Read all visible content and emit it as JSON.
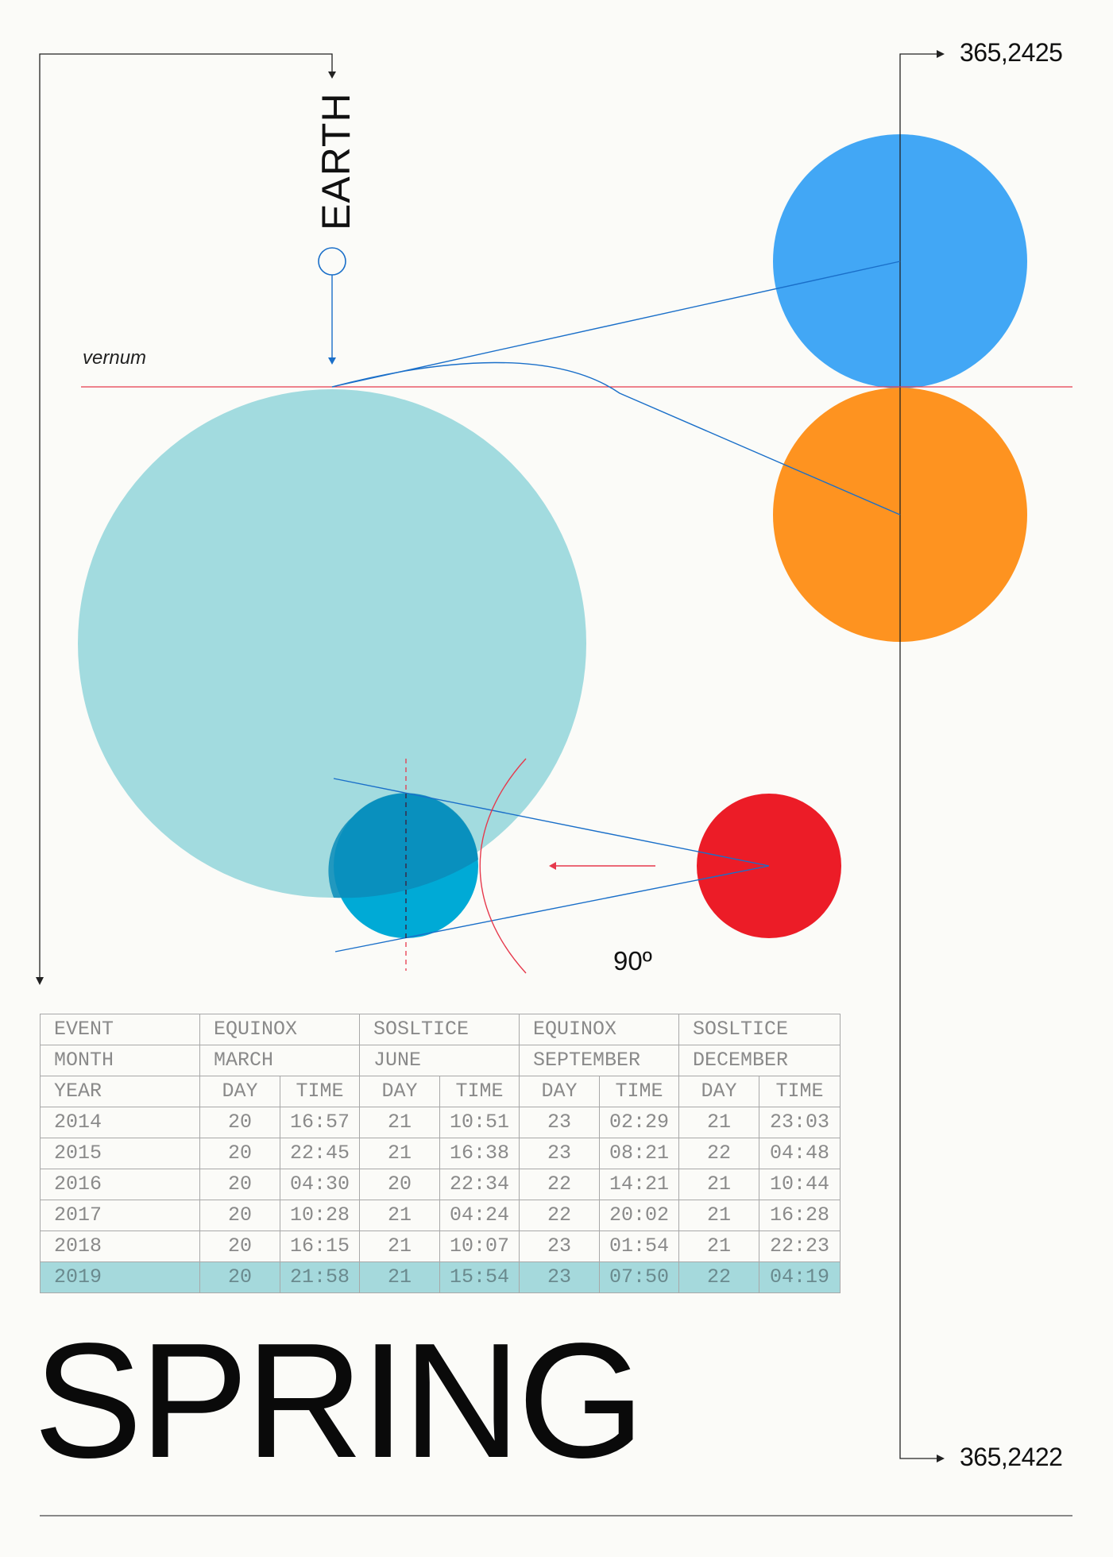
{
  "labels": {
    "planet": "EARTH",
    "vernum": "vernum",
    "angle": "90º",
    "year_top": "365,2425",
    "year_bottom": "365,2422",
    "title": "SPRING"
  },
  "colors": {
    "background": "#fbfbf8",
    "big_circle": "#a2dbdf",
    "blue_circle": "#42a7f5",
    "orange_circle": "#fe9320",
    "small_blue_circle": "#00aad6",
    "red_circle": "#ec1c27",
    "highlight_row": "#a5d9dc",
    "line_blue": "#1a6fc9",
    "line_red": "#e6394c"
  },
  "table": {
    "event_row": [
      "EVENT",
      "EQUINOX",
      "SOSLTICE",
      "EQUINOX",
      "SOSLTICE"
    ],
    "month_row": [
      "MONTH",
      "MARCH",
      "JUNE",
      "SEPTEMBER",
      "DECEMBER"
    ],
    "subheader_row": [
      "YEAR",
      "DAY",
      "TIME",
      "DAY",
      "TIME",
      "DAY",
      "TIME",
      "DAY",
      "TIME"
    ],
    "rows": [
      [
        "2014",
        "20",
        "16:57",
        "21",
        "10:51",
        "23",
        "02:29",
        "21",
        "23:03"
      ],
      [
        "2015",
        "20",
        "22:45",
        "21",
        "16:38",
        "23",
        "08:21",
        "22",
        "04:48"
      ],
      [
        "2016",
        "20",
        "04:30",
        "20",
        "22:34",
        "22",
        "14:21",
        "21",
        "10:44"
      ],
      [
        "2017",
        "20",
        "10:28",
        "21",
        "04:24",
        "22",
        "20:02",
        "21",
        "16:28"
      ],
      [
        "2018",
        "20",
        "16:15",
        "21",
        "10:07",
        "23",
        "01:54",
        "21",
        "22:23"
      ],
      [
        "2019",
        "20",
        "21:58",
        "21",
        "15:54",
        "23",
        "07:50",
        "22",
        "04:19"
      ]
    ],
    "highlighted_year": "2019"
  }
}
